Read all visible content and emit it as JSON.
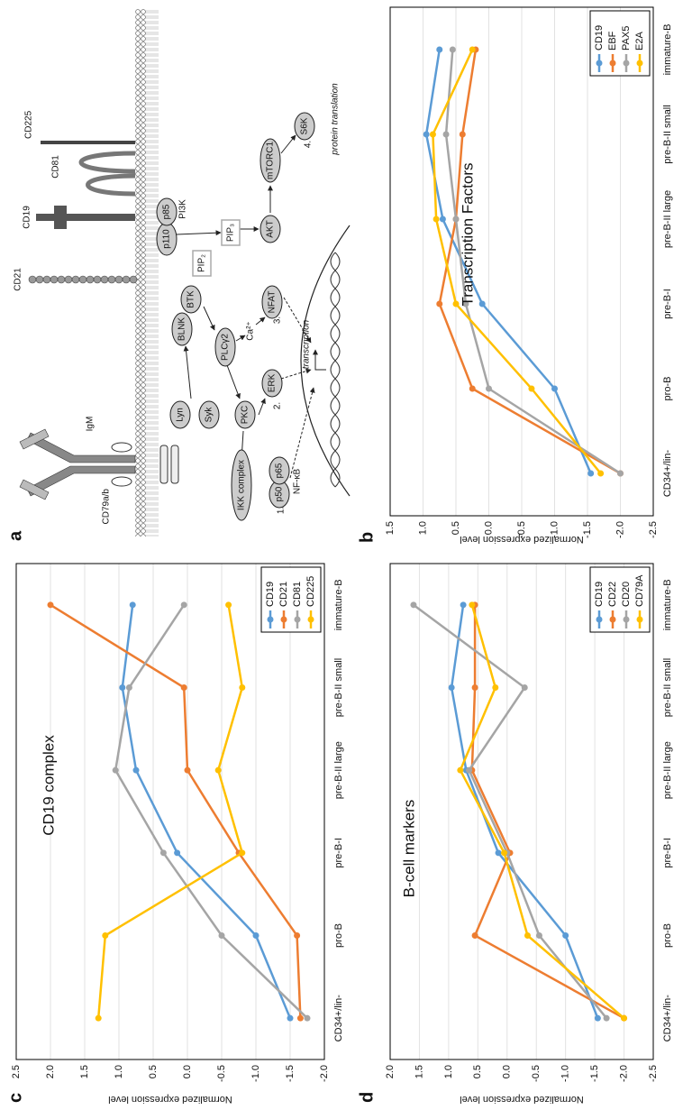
{
  "diagram": {
    "label": "a",
    "nodes": [
      {
        "label": "IgM"
      },
      {
        "label": "CD79a/b"
      },
      {
        "label": "CD21"
      },
      {
        "label": "CD19"
      },
      {
        "label": "CD81"
      },
      {
        "label": "CD225"
      },
      {
        "label": "Lyn"
      },
      {
        "label": "Syk"
      },
      {
        "label": "BLNK"
      },
      {
        "label": "BTK"
      },
      {
        "label": "p110"
      },
      {
        "label": "p85"
      },
      {
        "label": "PI3K"
      },
      {
        "label": "PIP₂"
      },
      {
        "label": "PIP₃"
      },
      {
        "label": "AKT"
      },
      {
        "label": "mTORC1"
      },
      {
        "label": "S6K"
      },
      {
        "label": "PLCγ2"
      },
      {
        "label": "Ca²⁺"
      },
      {
        "label": "NFAT"
      },
      {
        "label": "PKC"
      },
      {
        "label": "ERK"
      },
      {
        "label": "IKK complex"
      },
      {
        "label": "p50"
      },
      {
        "label": "p65"
      },
      {
        "label": "NF-κB"
      },
      {
        "label": "1."
      },
      {
        "label": "2."
      },
      {
        "label": "3."
      },
      {
        "label": "4."
      },
      {
        "label": "transcription"
      },
      {
        "label": "protein translation"
      }
    ]
  },
  "chart_data": [
    {
      "type": "line",
      "label": "b",
      "title": "Transcription Factors",
      "y_label": "Normalized expression level",
      "categories": [
        "CD34+/lin-",
        "pro-B",
        "pre-B-I",
        "pre-B-II large",
        "pre-B-II small",
        "immature-B"
      ],
      "series": [
        {
          "name": "CD19",
          "color": "#5b9bd5",
          "values": [
            -1.55,
            -1.0,
            0.1,
            0.7,
            0.95,
            0.75
          ]
        },
        {
          "name": "EBF",
          "color": "#ed7d31",
          "values": [
            -2.0,
            0.25,
            0.75,
            0.5,
            0.4,
            0.2
          ]
        },
        {
          "name": "PAX5",
          "color": "#a5a5a5",
          "values": [
            -2.0,
            0.0,
            0.35,
            0.5,
            0.65,
            0.55
          ]
        },
        {
          "name": "E2A",
          "color": "#ffc000",
          "values": [
            -1.7,
            -0.65,
            0.5,
            0.8,
            0.85,
            0.25
          ]
        }
      ],
      "ylim": [
        -2.5,
        1.5
      ],
      "yticks": [
        -2.5,
        {
          "value": -2,
          "label": "-2.0"
        },
        -1.5,
        {
          "value": -1,
          "label": "-1.0"
        },
        -0.5,
        {
          "value": 0,
          "label": "0.0"
        },
        0.5,
        {
          "value": 1,
          "label": "1.0"
        },
        1.5
      ],
      "grid": true,
      "legend": "lower right"
    },
    {
      "type": "line",
      "label": "c",
      "title": "CD19 complex",
      "y_label": "Normalized expression level",
      "categories": [
        "CD34+/lin-",
        "pro-B",
        "pre-B-I",
        "pre-B-II large",
        "pre-B-II small",
        "immature-B"
      ],
      "series": [
        {
          "name": "CD19",
          "color": "#5b9bd5",
          "values": [
            -1.5,
            -1.0,
            0.15,
            0.75,
            0.95,
            0.8
          ]
        },
        {
          "name": "CD21",
          "color": "#ed7d31",
          "values": [
            -1.65,
            -1.6,
            -0.75,
            0.0,
            0.05,
            2.0
          ]
        },
        {
          "name": "CD81",
          "color": "#a5a5a5",
          "values": [
            -1.75,
            -0.5,
            0.35,
            1.05,
            0.85,
            0.05
          ]
        },
        {
          "name": "CD225",
          "color": "#ffc000",
          "values": [
            1.3,
            1.2,
            -0.8,
            -0.45,
            -0.8,
            -0.6
          ]
        }
      ],
      "ylim": [
        -2.0,
        2.5
      ],
      "yticks": [
        {
          "value": -2,
          "label": "-2.0"
        },
        -1.5,
        {
          "value": -1,
          "label": "-1.0"
        },
        -0.5,
        {
          "value": 0,
          "label": "0.0"
        },
        0.5,
        {
          "value": 1,
          "label": "1.0"
        },
        1.5,
        {
          "value": 2,
          "label": "2.0"
        },
        2.5
      ],
      "grid": true,
      "legend": "lower right"
    },
    {
      "type": "line",
      "label": "d",
      "title": "B-cell markers",
      "y_label": "Normalized expression level",
      "categories": [
        "CD34+/lin-",
        "pro-B",
        "pre-B-I",
        "pre-B-II large",
        "pre-B-II small",
        "immature-B"
      ],
      "series": [
        {
          "name": "CD19",
          "color": "#5b9bd5",
          "values": [
            -1.55,
            -1.0,
            0.15,
            0.7,
            0.95,
            0.75
          ]
        },
        {
          "name": "CD22",
          "color": "#ed7d31",
          "values": [
            -2.0,
            0.55,
            -0.05,
            0.6,
            0.55,
            0.55
          ]
        },
        {
          "name": "CD20",
          "color": "#a5a5a5",
          "values": [
            -1.7,
            -0.55,
            0.0,
            0.65,
            -0.3,
            1.6
          ]
        },
        {
          "name": "CD79A",
          "color": "#ffc000",
          "values": [
            -2.0,
            -0.35,
            0.05,
            0.8,
            0.2,
            0.6
          ]
        }
      ],
      "ylim": [
        -2.5,
        2.0
      ],
      "yticks": [
        -2.5,
        {
          "value": -2,
          "label": "-2.0"
        },
        -1.5,
        {
          "value": -1,
          "label": "-1.0"
        },
        -0.5,
        {
          "value": 0,
          "label": "0.0"
        },
        0.5,
        {
          "value": 1,
          "label": "1.0"
        },
        1.5,
        {
          "value": 2,
          "label": "2.0"
        }
      ],
      "grid": true,
      "legend": "lower right"
    }
  ]
}
